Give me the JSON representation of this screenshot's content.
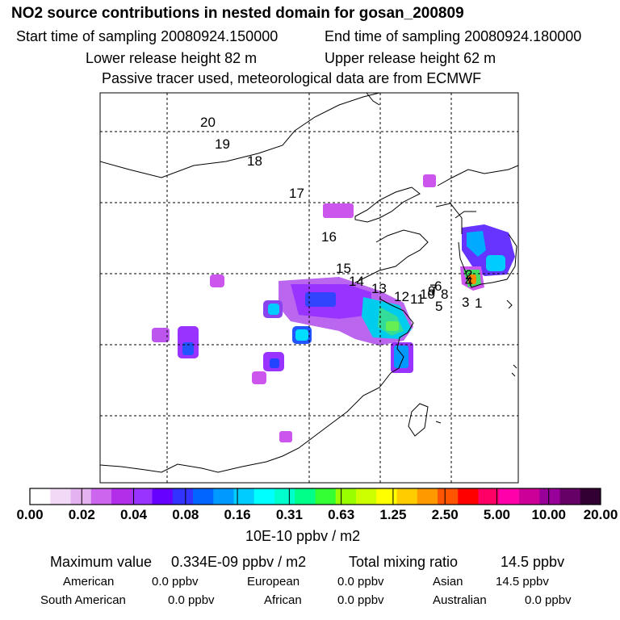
{
  "header": {
    "title": "NO2 source contributions in nested domain for gosan_200809",
    "start_label": "Start time of sampling 20080924.150000",
    "end_label": "End time of sampling 20080924.180000",
    "lower_label": "Lower release height   82 m",
    "upper_label": "Upper release height   62 m",
    "note": "Passive tracer used, meteorological data are from ECMWF"
  },
  "chart_data": {
    "type": "heatmap",
    "title": "NO2 source contributions in nested domain for gosan_200809",
    "colorbar_ticks": [
      "0.00",
      "0.02",
      "0.04",
      "0.08",
      "0.16",
      "0.31",
      "0.63",
      "1.25",
      "2.50",
      "5.00",
      "10.00",
      "20.00"
    ],
    "colorbar_unit": "10E-10 ppbv / m2",
    "trajectory_labels": [
      "20",
      "19",
      "18",
      "17",
      "16",
      "15",
      "14",
      "13",
      "12",
      "11",
      "10",
      "9",
      "8",
      "7",
      "6",
      "5",
      "4",
      "3",
      "2",
      "1"
    ],
    "colors": [
      "#ffffff",
      "#f2d9f5",
      "#e4b2ef",
      "#cc66ee",
      "#b22ee8",
      "#9933ff",
      "#6600ff",
      "#3333ff",
      "#0066ff",
      "#0099ff",
      "#00ccff",
      "#00ffff",
      "#00ffcc",
      "#00ff88",
      "#33ff33",
      "#99ff00",
      "#ccff00",
      "#ffff00",
      "#ffcc00",
      "#ff9900",
      "#ff5500",
      "#ff0000",
      "#ff0066",
      "#ff00aa",
      "#cc0099",
      "#990099",
      "#660066",
      "#330033"
    ]
  },
  "footer": {
    "max_label": "Maximum value",
    "max_value": "0.334E-09 ppbv / m2",
    "total_label": "Total mixing ratio",
    "total_value": "14.5 ppbv",
    "american_label": "American",
    "american_value": "0.0 ppbv",
    "european_label": "European",
    "european_value": "0.0 ppbv",
    "asian_label": "Asian",
    "asian_value": "14.5 ppbv",
    "south_american_label": "South American",
    "south_american_value": "0.0 ppbv",
    "african_label": "African",
    "african_value": "0.0 ppbv",
    "australian_label": "Australian",
    "australian_value": "0.0 ppbv"
  }
}
